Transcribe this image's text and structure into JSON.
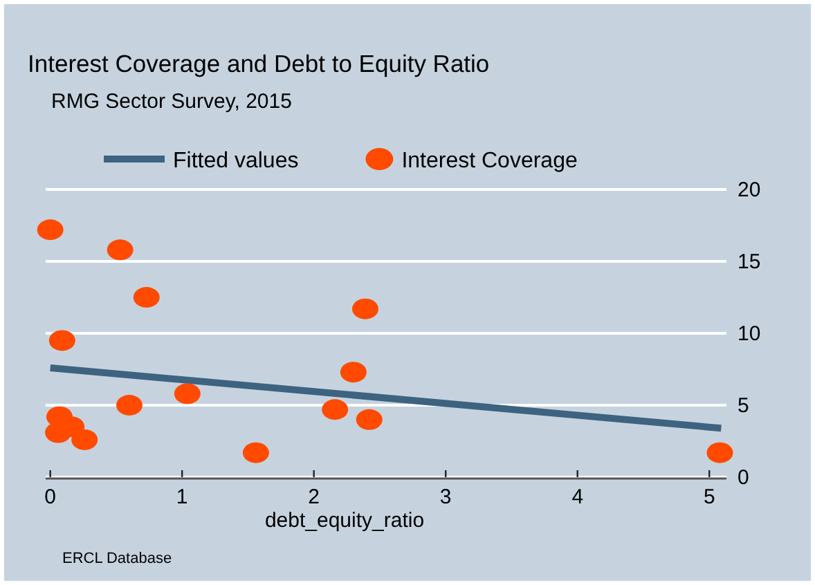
{
  "chart_data": {
    "type": "scatter",
    "title": "Interest Coverage and Debt to Equity Ratio",
    "subtitle": "RMG Sector Survey, 2015",
    "xlabel": "debt_equity_ratio",
    "annotations": [
      "ERCL Database"
    ],
    "xlim": [
      -0.035,
      5.13
    ],
    "xticks": [
      0,
      1,
      2,
      3,
      4,
      5
    ],
    "ylim": [
      0,
      20
    ],
    "yticks": [
      0,
      5,
      10,
      15,
      20
    ],
    "grid": "y",
    "legend": "top",
    "series": [
      {
        "name": "Fitted values",
        "type": "line",
        "color": "#3d6380",
        "x": [
          0,
          5.09
        ],
        "values": [
          7.6,
          3.4
        ],
        "marker": "none"
      },
      {
        "name": "Interest Coverage",
        "color": "#ff4a00",
        "marker": "circle",
        "x": [
          0,
          0.53,
          0.73,
          0.09,
          0.07,
          0.16,
          0.06,
          0.26,
          0.6,
          1.04,
          1.56,
          2.16,
          2.3,
          2.42,
          2.39,
          5.08
        ],
        "values": [
          17.2,
          15.8,
          12.5,
          9.5,
          4.2,
          3.5,
          3.1,
          2.6,
          5.0,
          5.8,
          1.7,
          4.7,
          7.3,
          4.0,
          11.7,
          1.7
        ]
      }
    ]
  }
}
